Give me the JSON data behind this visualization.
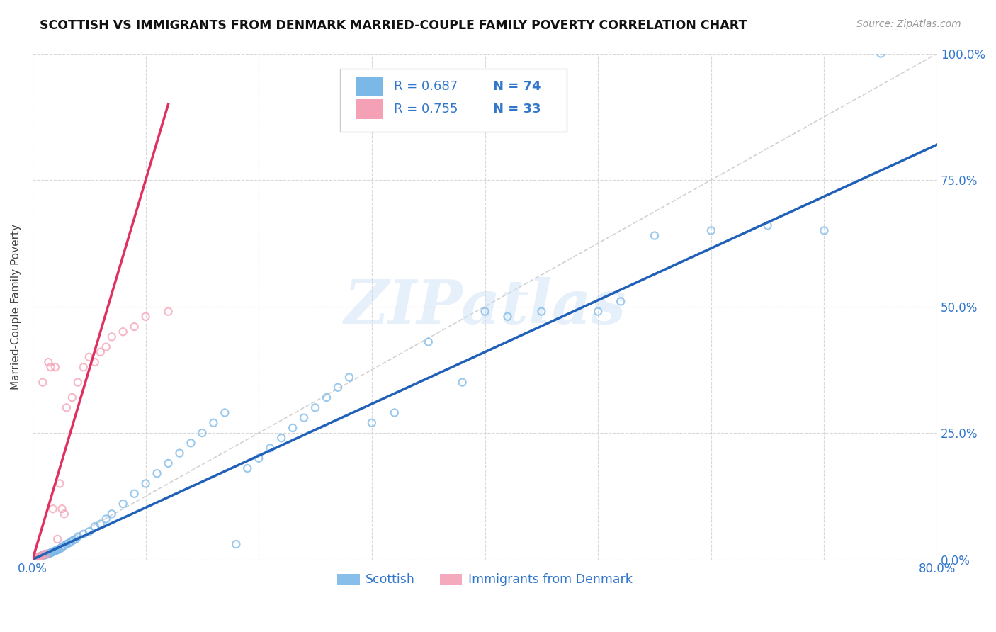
{
  "title": "SCOTTISH VS IMMIGRANTS FROM DENMARK MARRIED-COUPLE FAMILY POVERTY CORRELATION CHART",
  "source": "Source: ZipAtlas.com",
  "ylabel": "Married-Couple Family Poverty",
  "xlim": [
    0,
    0.8
  ],
  "ylim": [
    0,
    1.0
  ],
  "color_scottish": "#7ab8e8",
  "color_denmark": "#f4a0b5",
  "color_line_scottish": "#2060b8",
  "color_line_denmark": "#e03060",
  "color_rn_text": "#3377cc",
  "scatter_size": 55,
  "watermark": "ZIPatlas",
  "R_scottish": 0.687,
  "N_scottish": 74,
  "R_denmark": 0.755,
  "N_denmark": 33,
  "scottish_x": [
    0.002,
    0.003,
    0.004,
    0.005,
    0.005,
    0.006,
    0.007,
    0.007,
    0.008,
    0.009,
    0.01,
    0.011,
    0.012,
    0.013,
    0.014,
    0.015,
    0.016,
    0.017,
    0.018,
    0.019,
    0.02,
    0.021,
    0.022,
    0.023,
    0.025,
    0.026,
    0.028,
    0.03,
    0.032,
    0.034,
    0.036,
    0.038,
    0.04,
    0.045,
    0.05,
    0.055,
    0.06,
    0.065,
    0.07,
    0.08,
    0.09,
    0.1,
    0.11,
    0.12,
    0.13,
    0.14,
    0.15,
    0.16,
    0.17,
    0.18,
    0.19,
    0.2,
    0.21,
    0.22,
    0.23,
    0.24,
    0.25,
    0.26,
    0.27,
    0.28,
    0.3,
    0.32,
    0.35,
    0.38,
    0.4,
    0.42,
    0.45,
    0.5,
    0.52,
    0.55,
    0.6,
    0.65,
    0.7,
    0.75
  ],
  "scottish_y": [
    0.001,
    0.002,
    0.003,
    0.003,
    0.004,
    0.005,
    0.005,
    0.006,
    0.007,
    0.008,
    0.008,
    0.009,
    0.01,
    0.01,
    0.011,
    0.012,
    0.013,
    0.014,
    0.015,
    0.016,
    0.017,
    0.018,
    0.019,
    0.02,
    0.022,
    0.025,
    0.027,
    0.03,
    0.032,
    0.035,
    0.038,
    0.04,
    0.045,
    0.05,
    0.055,
    0.065,
    0.07,
    0.08,
    0.09,
    0.11,
    0.13,
    0.15,
    0.17,
    0.19,
    0.21,
    0.23,
    0.25,
    0.27,
    0.29,
    0.03,
    0.18,
    0.2,
    0.22,
    0.24,
    0.26,
    0.28,
    0.3,
    0.32,
    0.34,
    0.36,
    0.27,
    0.29,
    0.43,
    0.35,
    0.49,
    0.48,
    0.49,
    0.49,
    0.51,
    0.64,
    0.65,
    0.66,
    0.65,
    1.0
  ],
  "denmark_x": [
    0.001,
    0.002,
    0.003,
    0.004,
    0.004,
    0.005,
    0.006,
    0.007,
    0.008,
    0.009,
    0.01,
    0.012,
    0.014,
    0.016,
    0.018,
    0.02,
    0.022,
    0.024,
    0.026,
    0.028,
    0.03,
    0.035,
    0.04,
    0.045,
    0.05,
    0.055,
    0.06,
    0.065,
    0.07,
    0.08,
    0.09,
    0.1,
    0.12
  ],
  "denmark_y": [
    0.001,
    0.002,
    0.003,
    0.003,
    0.004,
    0.005,
    0.005,
    0.006,
    0.007,
    0.35,
    0.01,
    0.011,
    0.39,
    0.38,
    0.1,
    0.38,
    0.04,
    0.15,
    0.1,
    0.09,
    0.3,
    0.32,
    0.35,
    0.38,
    0.4,
    0.39,
    0.41,
    0.42,
    0.44,
    0.45,
    0.46,
    0.48,
    0.49
  ]
}
